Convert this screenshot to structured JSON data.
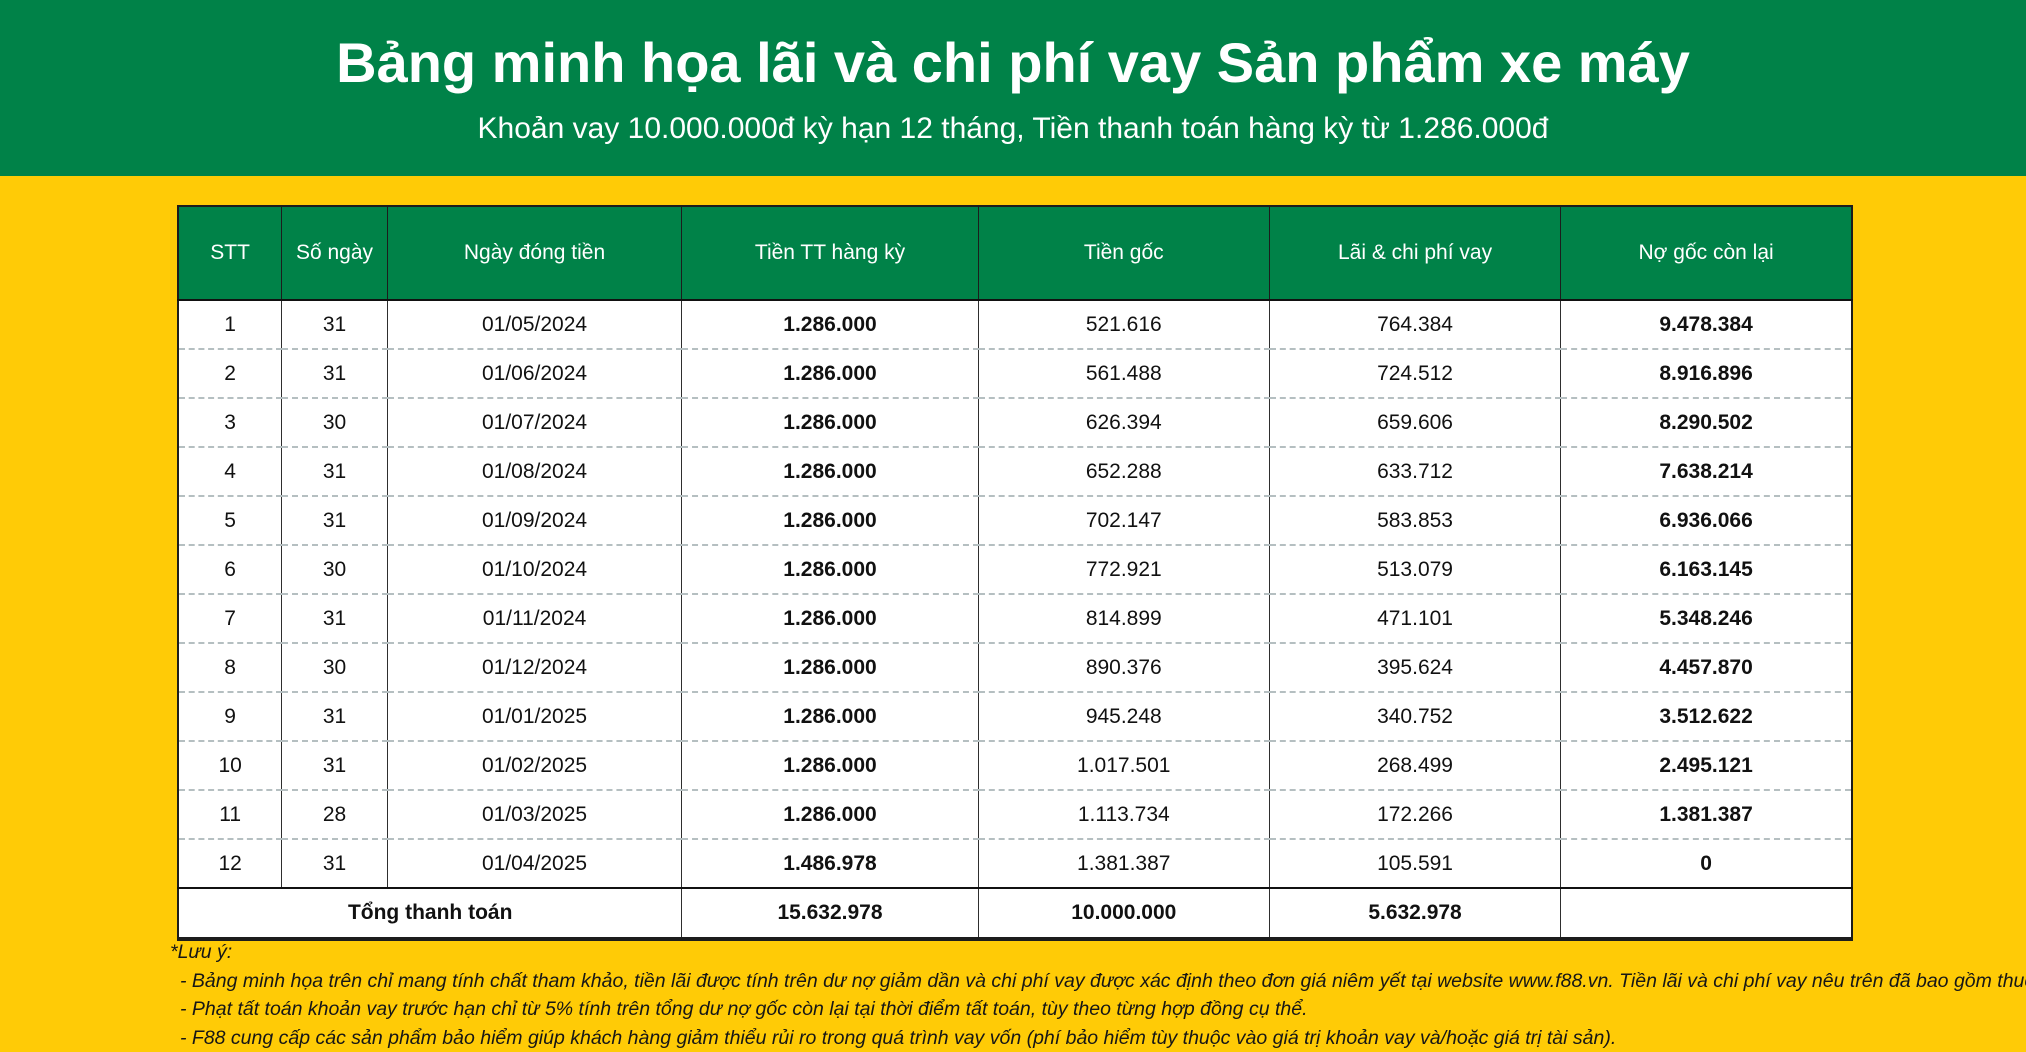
{
  "banner": {
    "title": "Bảng minh họa lãi và chi phí vay Sản phẩm xe máy",
    "subtitle": "Khoản vay 10.000.000đ kỳ hạn 12 tháng, Tiền thanh toán hàng kỳ từ 1.286.000đ"
  },
  "table": {
    "columns": [
      "STT",
      "Số ngày",
      "Ngày đóng tiền",
      "Tiền TT hàng kỳ",
      "Tiền gốc",
      "Lãi & chi phí vay",
      "Nợ gốc còn lại"
    ],
    "rows": [
      [
        "1",
        "31",
        "01/05/2024",
        "1.286.000",
        "521.616",
        "764.384",
        "9.478.384"
      ],
      [
        "2",
        "31",
        "01/06/2024",
        "1.286.000",
        "561.488",
        "724.512",
        "8.916.896"
      ],
      [
        "3",
        "30",
        "01/07/2024",
        "1.286.000",
        "626.394",
        "659.606",
        "8.290.502"
      ],
      [
        "4",
        "31",
        "01/08/2024",
        "1.286.000",
        "652.288",
        "633.712",
        "7.638.214"
      ],
      [
        "5",
        "31",
        "01/09/2024",
        "1.286.000",
        "702.147",
        "583.853",
        "6.936.066"
      ],
      [
        "6",
        "30",
        "01/10/2024",
        "1.286.000",
        "772.921",
        "513.079",
        "6.163.145"
      ],
      [
        "7",
        "31",
        "01/11/2024",
        "1.286.000",
        "814.899",
        "471.101",
        "5.348.246"
      ],
      [
        "8",
        "30",
        "01/12/2024",
        "1.286.000",
        "890.376",
        "395.624",
        "4.457.870"
      ],
      [
        "9",
        "31",
        "01/01/2025",
        "1.286.000",
        "945.248",
        "340.752",
        "3.512.622"
      ],
      [
        "10",
        "31",
        "01/02/2025",
        "1.286.000",
        "1.017.501",
        "268.499",
        "2.495.121"
      ],
      [
        "11",
        "28",
        "01/03/2025",
        "1.286.000",
        "1.113.734",
        "172.266",
        "1.381.387"
      ],
      [
        "12",
        "31",
        "01/04/2025",
        "1.486.978",
        "1.381.387",
        "105.591",
        "0"
      ]
    ],
    "total": {
      "label": "Tổng thanh toán",
      "values": [
        "15.632.978",
        "10.000.000",
        "5.632.978",
        ""
      ]
    }
  },
  "notes": {
    "title": "*Lưu ý:",
    "items": [
      "- Bảng minh họa trên chỉ mang tính chất tham khảo, tiền lãi được tính trên dư nợ giảm dần và chi phí vay được xác định theo đơn giá niêm yết tại website www.f88.vn. Tiền lãi và chi phí vay nêu trên đã bao gồm thuế GTGT.",
      "- Phạt tất toán khoản vay trước hạn chỉ từ 5% tính trên tổng dư nợ gốc còn lại tại thời điểm tất toán, tùy theo từng hợp đồng cụ thể.",
      "- F88 cung cấp các sản phẩm bảo hiểm giúp khách hàng giảm thiểu rủi ro trong quá trình vay vốn (phí bảo hiểm tùy thuộc vào giá trị khoản vay và/hoặc giá trị tài sản)."
    ]
  },
  "colors": {
    "brand_green": "#008248",
    "background_yellow": "#FFCB06",
    "row_divider": "#b5bfc1"
  }
}
